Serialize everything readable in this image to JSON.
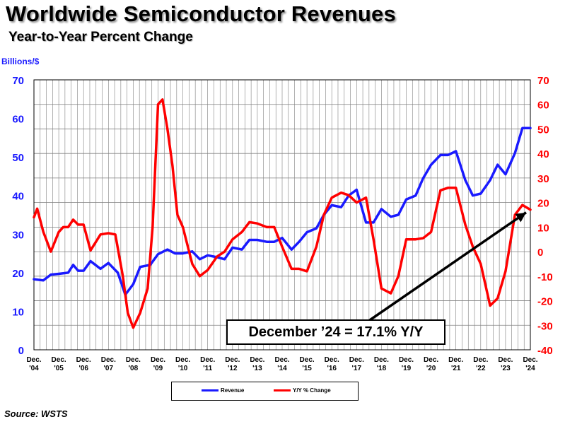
{
  "header": {
    "title": "Worldwide Semiconductor Revenues",
    "subtitle": "Year-to-Year Percent Change",
    "y_unit_label": "Billions/$"
  },
  "source": "Source: WSTS",
  "callout": "December ’24 = 17.1% Y/Y",
  "legend": {
    "revenue_label": "Revenue",
    "change_label": "Y/Y % Change"
  },
  "colors": {
    "revenue": "#1a1aff",
    "change": "#ff0000",
    "left_axis": "#1a1aff",
    "right_axis": "#ff0000"
  },
  "chart_data": {
    "type": "line",
    "title": "Worldwide Semiconductor Revenues",
    "subtitle": "Year-to-Year Percent Change",
    "ylabel_left": "Billions/$",
    "ylim_left": [
      0,
      70
    ],
    "yticks_left": [
      0,
      10,
      20,
      30,
      40,
      50,
      60,
      70
    ],
    "ylim_right": [
      -40,
      70
    ],
    "yticks_right": [
      -40,
      -30,
      -20,
      -10,
      0,
      10,
      20,
      30,
      40,
      50,
      60,
      70
    ],
    "xlim": [
      2004.92,
      2024.92
    ],
    "categories": [
      "Dec. '04",
      "Dec. '05",
      "Dec. '06",
      "Dec. '07",
      "Dec. '08",
      "Dec. '09",
      "Dec. '10",
      "Dec. '11",
      "Dec. '12",
      "Dec. '13",
      "Dec. '14",
      "Dec. '15",
      "Dec. '16",
      "Dec. '17",
      "Dec. '18",
      "Dec. '19",
      "Dec. '20",
      "Dec. '21",
      "Dec. '22",
      "Dec. '23",
      "Dec. '24"
    ],
    "category_lines": [
      [
        "Dec.",
        "'04"
      ],
      [
        "Dec.",
        "'05"
      ],
      [
        "Dec.",
        "'06"
      ],
      [
        "Dec.",
        "'07"
      ],
      [
        "Dec.",
        "'08"
      ],
      [
        "Dec.",
        "'09"
      ],
      [
        "Dec.",
        "'10"
      ],
      [
        "Dec.",
        "'11"
      ],
      [
        "Dec.",
        "'12"
      ],
      [
        "Dec.",
        "'13"
      ],
      [
        "Dec.",
        "'14"
      ],
      [
        "Dec.",
        "'15"
      ],
      [
        "Dec.",
        "'16"
      ],
      [
        "Dec.",
        "'17"
      ],
      [
        "Dec.",
        "'18"
      ],
      [
        "Dec.",
        "'19"
      ],
      [
        "Dec.",
        "'20"
      ],
      [
        "Dec.",
        "'21"
      ],
      [
        "Dec.",
        "'22"
      ],
      [
        "Dec.",
        "'23"
      ],
      [
        "Dec.",
        "'24"
      ]
    ],
    "series": [
      {
        "name": "Revenue",
        "axis": "left",
        "x": [
          2004.92,
          2005.3,
          2005.6,
          2005.92,
          2006.3,
          2006.5,
          2006.7,
          2006.92,
          2007.2,
          2007.6,
          2007.92,
          2008.3,
          2008.6,
          2008.92,
          2009.2,
          2009.6,
          2009.92,
          2010.3,
          2010.6,
          2010.92,
          2011.3,
          2011.6,
          2011.92,
          2012.3,
          2012.6,
          2012.92,
          2013.3,
          2013.6,
          2013.92,
          2014.3,
          2014.6,
          2014.92,
          2015.3,
          2015.6,
          2015.92,
          2016.3,
          2016.6,
          2016.92,
          2017.3,
          2017.6,
          2017.92,
          2018.3,
          2018.6,
          2018.92,
          2019.3,
          2019.6,
          2019.92,
          2020.3,
          2020.6,
          2020.92,
          2021.3,
          2021.6,
          2021.92,
          2022.3,
          2022.6,
          2022.92,
          2023.3,
          2023.6,
          2023.92,
          2024.3,
          2024.6,
          2024.92
        ],
        "values": [
          18.3,
          18.0,
          19.5,
          19.7,
          20.0,
          22.0,
          20.5,
          20.5,
          23.0,
          21.0,
          22.5,
          20.0,
          14.3,
          17.0,
          21.5,
          22.0,
          24.8,
          26.0,
          25.0,
          25.0,
          25.5,
          23.5,
          24.5,
          24.0,
          23.5,
          26.5,
          26.0,
          28.5,
          28.5,
          28.0,
          28.0,
          29.0,
          26.0,
          28.0,
          30.5,
          31.5,
          35.0,
          37.5,
          37.0,
          40.0,
          41.5,
          33.0,
          33.0,
          36.5,
          34.5,
          35.0,
          39.0,
          40.0,
          44.5,
          48.0,
          50.5,
          50.5,
          51.5,
          44.0,
          40.0,
          40.5,
          44.0,
          48.0,
          45.5,
          51.0,
          57.5,
          57.5
        ]
      },
      {
        "name": "Y/Y % Change",
        "axis": "right",
        "x": [
          2004.92,
          2005.05,
          2005.3,
          2005.6,
          2005.92,
          2006.1,
          2006.3,
          2006.5,
          2006.7,
          2006.92,
          2007.2,
          2007.6,
          2007.92,
          2008.2,
          2008.5,
          2008.7,
          2008.92,
          2009.2,
          2009.5,
          2009.7,
          2009.92,
          2010.1,
          2010.3,
          2010.5,
          2010.7,
          2010.92,
          2011.3,
          2011.6,
          2011.92,
          2012.3,
          2012.6,
          2012.92,
          2013.3,
          2013.6,
          2013.92,
          2014.3,
          2014.6,
          2014.92,
          2015.3,
          2015.6,
          2015.92,
          2016.3,
          2016.6,
          2016.92,
          2017.3,
          2017.6,
          2017.92,
          2018.3,
          2018.6,
          2018.92,
          2019.3,
          2019.6,
          2019.92,
          2020.3,
          2020.6,
          2020.92,
          2021.3,
          2021.6,
          2021.92,
          2022.3,
          2022.6,
          2022.92,
          2023.3,
          2023.6,
          2023.92,
          2024.3,
          2024.6,
          2024.92
        ],
        "values": [
          14.0,
          17.5,
          8.0,
          0.0,
          8.0,
          10.0,
          10.0,
          13.0,
          11.0,
          11.0,
          0.5,
          7.0,
          7.5,
          7.0,
          -10.0,
          -25.0,
          -31.0,
          -25.0,
          -15.0,
          10.0,
          60.0,
          62.0,
          50.0,
          35.0,
          15.0,
          10.0,
          -5.0,
          -10.0,
          -7.5,
          -2.0,
          0.0,
          5.0,
          8.0,
          12.0,
          11.5,
          10.0,
          10.0,
          2.0,
          -7.0,
          -7.0,
          -8.0,
          2.0,
          15.0,
          22.0,
          24.0,
          23.0,
          20.0,
          22.0,
          5.0,
          -15.0,
          -17.0,
          -10.0,
          5.0,
          5.0,
          5.5,
          8.0,
          25.0,
          26.0,
          26.0,
          11.0,
          2.0,
          -5.0,
          -22.0,
          -19.0,
          -8.0,
          15.0,
          19.0,
          17.1
        ]
      }
    ]
  }
}
